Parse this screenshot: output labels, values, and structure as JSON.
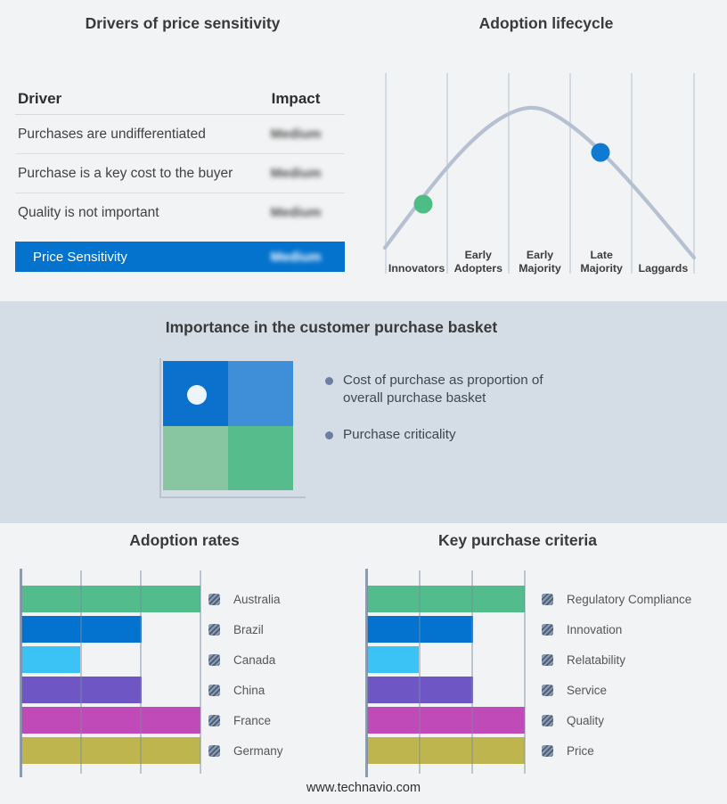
{
  "price_sensitivity": {
    "title": "Drivers of price sensitivity",
    "accent_color": "#0473ce",
    "table": {
      "col_driver": "Driver",
      "col_impact": "Impact",
      "rows": [
        {
          "driver": "Purchases are undifferentiated",
          "impact": "Medium"
        },
        {
          "driver": "Purchase is a key cost to the buyer",
          "impact": "Medium"
        },
        {
          "driver": "Quality is not important",
          "impact": "Medium"
        }
      ],
      "summary": {
        "label": "Price Sensitivity",
        "impact": "Medium"
      }
    }
  },
  "adoption_lifecycle": {
    "title": "Adoption lifecycle"
  },
  "purchase_basket": {
    "title": "Importance in the customer purchase basket",
    "bullets": [
      "Cost of purchase as proportion of overall purchase basket",
      "Purchase criticality"
    ],
    "quadrant": {
      "top_left": "#0b71cd",
      "top_right": "#3e8ed8",
      "bottom_left": "#88c6a2",
      "bottom_right": "#57bc8b",
      "dot_color": "#edf5fa"
    }
  },
  "footer": "www.technavio.com",
  "chart_data": [
    {
      "id": "adoption-rates",
      "type": "bar",
      "orientation": "horizontal",
      "title": "Adoption rates",
      "categories": [
        "Australia",
        "Brazil",
        "Canada",
        "China",
        "France",
        "Germany"
      ],
      "values": [
        100,
        67,
        33,
        67,
        100,
        100
      ],
      "xlim": [
        0,
        100
      ],
      "gridlines": [
        0,
        33.3,
        66.7,
        100
      ],
      "colors": [
        "#52bc8c",
        "#0473d0",
        "#3cc3f5",
        "#6f56c5",
        "#c04ab8",
        "#beb54e"
      ],
      "legend_position": "right",
      "legend_swatch_style": "hatched-gray"
    },
    {
      "id": "key-purchase-criteria",
      "type": "bar",
      "orientation": "horizontal",
      "title": "Key purchase criteria",
      "categories": [
        "Regulatory Compliance",
        "Innovation",
        "Relatability",
        "Service",
        "Quality",
        "Price"
      ],
      "values": [
        100,
        67,
        33,
        67,
        100,
        100
      ],
      "xlim": [
        0,
        100
      ],
      "gridlines": [
        0,
        33.3,
        66.7,
        100
      ],
      "colors": [
        "#52bc8c",
        "#0473d0",
        "#3cc3f5",
        "#6f56c5",
        "#c04ab8",
        "#beb54e"
      ],
      "legend_position": "right",
      "legend_swatch_style": "hatched-gray"
    },
    {
      "id": "lifecycle",
      "type": "line",
      "title": "Adoption lifecycle",
      "shape": "bell-curve",
      "curve_color": "#b5c1d2",
      "stages": [
        "Innovators",
        "Early Adopters",
        "Early Majority",
        "Late Majority",
        "Laggards"
      ],
      "markers": [
        {
          "name": "current-position-marker",
          "stage": "Innovators",
          "color": "#4dbd85"
        },
        {
          "name": "future-position-marker",
          "stage": "Late Majority",
          "color": "#0f7ad2"
        }
      ]
    }
  ]
}
